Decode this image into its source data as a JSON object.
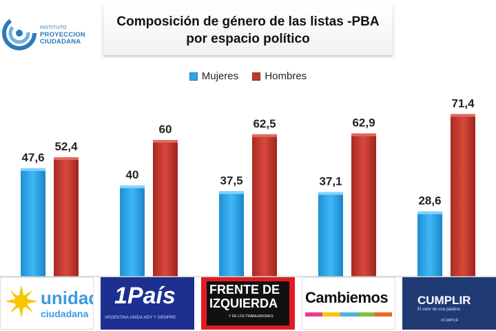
{
  "logo": {
    "line1": "INSTITUTO",
    "line2": "PROYECCION",
    "line3": "CIUDADANA"
  },
  "chart_data": {
    "type": "bar",
    "title": "Composición de género de las listas -PBA",
    "subtitle": "por espacio político",
    "categories": [
      "Unidad Ciudadana",
      "1País",
      "Frente de Izquierda",
      "Cambiemos",
      "Cumplir"
    ],
    "series": [
      {
        "name": "Mujeres",
        "values": [
          47.6,
          40,
          37.5,
          37.1,
          28.6
        ],
        "labels": [
          "47,6",
          "40",
          "37,5",
          "37,1",
          "28,6"
        ],
        "color": "#2aa7ea"
      },
      {
        "name": "Hombres",
        "values": [
          52.4,
          60,
          62.5,
          62.9,
          71.4
        ],
        "labels": [
          "52,4",
          "60",
          "62,5",
          "62,9",
          "71,4"
        ],
        "color": "#c0392b"
      }
    ],
    "ylim": [
      0,
      80
    ],
    "xlabel": "",
    "ylabel": "",
    "grid": false,
    "legend": "top-center"
  },
  "parties": {
    "unidad": {
      "name": "unidad",
      "sub": "ciudadana"
    },
    "pais": {
      "name": "1País",
      "sub": "ARGENTINA UNIDA HOY Y SIEMPRE"
    },
    "frente": {
      "name1": "FRENTE DE",
      "name2": "IZQUIERDA",
      "sub": "Y DE LOS TRABAJADORES"
    },
    "cambiemos": {
      "name": "Cambiemos"
    },
    "cumplir": {
      "name": "CUMPLIR",
      "sub": "El valor de una palabra",
      "small": "#CUMPLIR"
    }
  }
}
